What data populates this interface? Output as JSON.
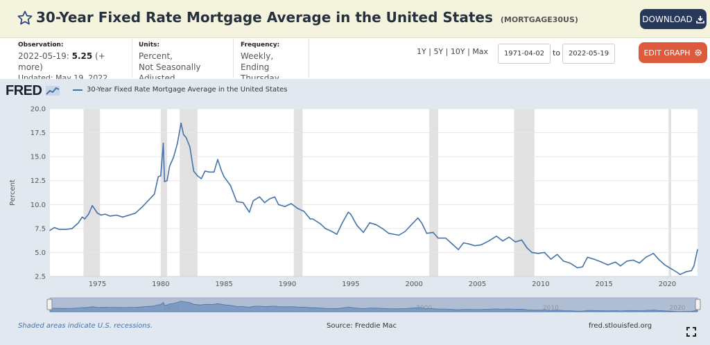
{
  "header": {
    "title": "30-Year Fixed Rate Mortgage Average in the United States",
    "series_id": "(MORTGAGE30US)",
    "download_label": "DOWNLOAD",
    "star_icon": "star-outline-icon",
    "download_icon": "download-icon"
  },
  "meta": {
    "observation_label": "Observation:",
    "observation_date": "2022-05-19:",
    "observation_value": "5.25",
    "observation_more": "(+ more)",
    "updated": "Updated: May 19, 2022",
    "units_label": "Units:",
    "units_line1": "Percent,",
    "units_line2": "Not Seasonally Adjusted",
    "frequency_label": "Frequency:",
    "frequency_line1": "Weekly,",
    "frequency_line2": "Ending Thursday"
  },
  "controls": {
    "range_1y": "1Y",
    "range_5y": "5Y",
    "range_10y": "10Y",
    "range_max": "Max",
    "sep": "|",
    "start_date": "1971-04-02",
    "to_label": "to",
    "end_date": "2022-05-19",
    "edit_label": "EDIT GRAPH",
    "gear_icon": "gear-icon"
  },
  "legend": {
    "logo": "FRED",
    "series_label": "30-Year Fixed Rate Mortgage Average in the United States",
    "series_color": "#4572a7"
  },
  "footer": {
    "recession_note": "Shaded areas indicate U.S. recessions.",
    "source": "Source: Freddie Mac",
    "url": "fred.stlouisfed.org"
  },
  "chart_data": {
    "type": "line",
    "ylabel": "Percent",
    "xlabel": "",
    "ylim": [
      2.5,
      20.0
    ],
    "xlim": [
      1971.25,
      2022.38
    ],
    "yticks": [
      "2.5",
      "5.0",
      "7.5",
      "10.0",
      "12.5",
      "15.0",
      "17.5",
      "20.0"
    ],
    "xticks": [
      "1975",
      "1980",
      "1985",
      "1990",
      "1995",
      "2000",
      "2005",
      "2010",
      "2015",
      "2020"
    ],
    "grid": true,
    "navigator_labels": [
      "1980",
      "2000",
      "2010",
      "2020"
    ],
    "recessions": [
      [
        1973.9,
        1975.2
      ],
      [
        1980.0,
        1980.5
      ],
      [
        1981.5,
        1982.9
      ],
      [
        1990.5,
        1991.2
      ],
      [
        2001.2,
        2001.9
      ],
      [
        2007.9,
        2009.5
      ],
      [
        2020.1,
        2020.3
      ]
    ],
    "series": [
      {
        "name": "30-Year Fixed Rate Mortgage Average in the United States",
        "color": "#4572a7",
        "x": [
          1971.25,
          1971.6,
          1972.0,
          1972.5,
          1973.0,
          1973.5,
          1973.8,
          1974.0,
          1974.3,
          1974.6,
          1974.8,
          1975.0,
          1975.3,
          1975.6,
          1976.0,
          1976.5,
          1977.0,
          1977.5,
          1978.0,
          1978.5,
          1979.0,
          1979.5,
          1979.8,
          1980.0,
          1980.2,
          1980.3,
          1980.5,
          1980.7,
          1981.0,
          1981.3,
          1981.6,
          1981.8,
          1982.0,
          1982.3,
          1982.6,
          1982.9,
          1983.2,
          1983.5,
          1983.8,
          1984.2,
          1984.5,
          1984.8,
          1985.0,
          1985.5,
          1986.0,
          1986.5,
          1987.0,
          1987.3,
          1987.8,
          1988.2,
          1988.6,
          1989.0,
          1989.3,
          1989.8,
          1990.3,
          1990.8,
          1991.3,
          1991.8,
          1992.0,
          1992.6,
          1993.0,
          1993.5,
          1993.9,
          1994.3,
          1994.8,
          1995.0,
          1995.5,
          1996.0,
          1996.5,
          1997.0,
          1997.5,
          1998.0,
          1998.8,
          1999.3,
          1999.8,
          2000.3,
          2000.6,
          2001.0,
          2001.5,
          2001.9,
          2002.5,
          2003.0,
          2003.5,
          2003.9,
          2004.3,
          2004.8,
          2005.3,
          2005.9,
          2006.5,
          2007.0,
          2007.5,
          2008.0,
          2008.5,
          2008.9,
          2009.3,
          2009.8,
          2010.3,
          2010.8,
          2011.3,
          2011.8,
          2012.3,
          2012.9,
          2013.3,
          2013.7,
          2014.2,
          2014.8,
          2015.3,
          2015.9,
          2016.3,
          2016.8,
          2017.3,
          2017.8,
          2018.3,
          2018.9,
          2019.3,
          2019.8,
          2020.3,
          2020.8,
          2021.0,
          2021.5,
          2021.9,
          2022.1,
          2022.38
        ],
        "values": [
          7.3,
          7.6,
          7.4,
          7.4,
          7.5,
          8.1,
          8.7,
          8.5,
          9.0,
          9.9,
          9.5,
          9.1,
          8.9,
          9.0,
          8.8,
          8.9,
          8.7,
          8.9,
          9.1,
          9.7,
          10.4,
          11.1,
          12.9,
          13.0,
          16.4,
          12.4,
          12.5,
          14.0,
          14.9,
          16.3,
          18.5,
          17.3,
          17.0,
          16.0,
          13.5,
          13.0,
          12.7,
          13.5,
          13.4,
          13.4,
          14.7,
          13.5,
          12.9,
          12.0,
          10.3,
          10.2,
          9.2,
          10.4,
          10.8,
          10.2,
          10.6,
          10.8,
          10.0,
          9.8,
          10.1,
          9.6,
          9.3,
          8.5,
          8.5,
          8.0,
          7.5,
          7.2,
          6.9,
          8.0,
          9.2,
          9.0,
          7.8,
          7.1,
          8.1,
          7.9,
          7.5,
          7.0,
          6.8,
          7.2,
          7.9,
          8.6,
          8.1,
          7.0,
          7.1,
          6.5,
          6.5,
          5.9,
          5.3,
          6.0,
          5.9,
          5.7,
          5.8,
          6.2,
          6.7,
          6.2,
          6.6,
          6.1,
          6.3,
          5.5,
          5.0,
          4.9,
          5.0,
          4.3,
          4.8,
          4.1,
          3.9,
          3.4,
          3.5,
          4.5,
          4.3,
          4.0,
          3.7,
          4.0,
          3.6,
          4.1,
          4.2,
          3.9,
          4.5,
          4.9,
          4.3,
          3.7,
          3.3,
          2.9,
          2.7,
          3.0,
          3.1,
          3.6,
          5.3
        ]
      }
    ]
  }
}
